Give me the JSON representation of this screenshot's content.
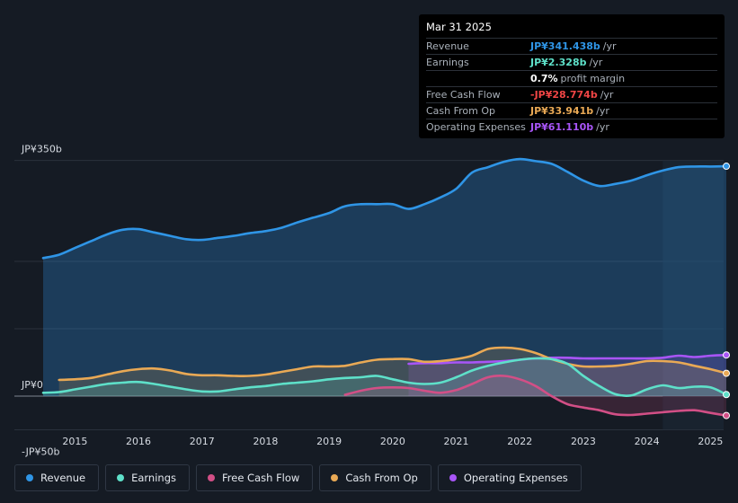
{
  "chart_data": {
    "type": "line",
    "title": "Mar 31 2025",
    "y_ticks": [
      {
        "label": "JP¥350b",
        "value": 350
      },
      {
        "label": "JP¥0",
        "value": 0
      },
      {
        "label": "-JP¥50b",
        "value": -50
      }
    ],
    "ylim": [
      -50,
      350
    ],
    "xlim": [
      2014.5,
      2025.25
    ],
    "x_ticks": [
      "2015",
      "2016",
      "2017",
      "2018",
      "2019",
      "2020",
      "2021",
      "2022",
      "2023",
      "2024",
      "2025"
    ],
    "forecast_start": 2024.25,
    "series": [
      {
        "name": "Revenue",
        "color": "#2f95e6",
        "fill": true,
        "x": [
          2014.5,
          2014.75,
          2015.0,
          2015.25,
          2015.5,
          2015.75,
          2016.0,
          2016.25,
          2016.5,
          2016.75,
          2017.0,
          2017.25,
          2017.5,
          2017.75,
          2018.0,
          2018.25,
          2018.5,
          2018.75,
          2019.0,
          2019.25,
          2019.5,
          2019.75,
          2020.0,
          2020.25,
          2020.5,
          2020.75,
          2021.0,
          2021.25,
          2021.5,
          2021.75,
          2022.0,
          2022.25,
          2022.5,
          2022.75,
          2023.0,
          2023.25,
          2023.5,
          2023.75,
          2024.0,
          2024.25,
          2024.5,
          2024.75,
          2025.0,
          2025.25
        ],
        "values": [
          205,
          210,
          220,
          230,
          240,
          247,
          248,
          243,
          238,
          233,
          232,
          235,
          238,
          242,
          245,
          250,
          258,
          265,
          272,
          282,
          285,
          285,
          285,
          278,
          285,
          295,
          308,
          332,
          340,
          348,
          352,
          349,
          345,
          333,
          320,
          312,
          315,
          320,
          328,
          335,
          340,
          341,
          341,
          341.4
        ]
      },
      {
        "name": "Earnings",
        "color": "#5ee0c9",
        "fill": true,
        "x": [
          2014.5,
          2014.75,
          2015.0,
          2015.25,
          2015.5,
          2015.75,
          2016.0,
          2016.25,
          2016.5,
          2016.75,
          2017.0,
          2017.25,
          2017.5,
          2017.75,
          2018.0,
          2018.25,
          2018.5,
          2018.75,
          2019.0,
          2019.25,
          2019.5,
          2019.75,
          2020.0,
          2020.25,
          2020.5,
          2020.75,
          2021.0,
          2021.25,
          2021.5,
          2021.75,
          2022.0,
          2022.25,
          2022.5,
          2022.75,
          2023.0,
          2023.25,
          2023.5,
          2023.75,
          2024.0,
          2024.25,
          2024.5,
          2024.75,
          2025.0,
          2025.25
        ],
        "values": [
          5,
          6,
          10,
          14,
          18,
          20,
          21,
          18,
          14,
          10,
          7,
          7,
          10,
          13,
          15,
          18,
          20,
          22,
          25,
          27,
          28,
          30,
          25,
          20,
          18,
          20,
          28,
          38,
          45,
          50,
          54,
          56,
          55,
          48,
          30,
          15,
          3,
          1,
          10,
          16,
          12,
          14,
          13,
          2.3
        ]
      },
      {
        "name": "Free Cash Flow",
        "color": "#d24f86",
        "fill": true,
        "x": [
          2019.25,
          2019.5,
          2019.75,
          2020.0,
          2020.25,
          2020.5,
          2020.75,
          2021.0,
          2021.25,
          2021.5,
          2021.75,
          2022.0,
          2022.25,
          2022.5,
          2022.75,
          2023.0,
          2023.25,
          2023.5,
          2023.75,
          2024.0,
          2024.25,
          2024.5,
          2024.75,
          2025.0,
          2025.25
        ],
        "values": [
          2,
          8,
          12,
          13,
          12,
          8,
          5,
          9,
          18,
          28,
          30,
          25,
          15,
          0,
          -12,
          -17,
          -21,
          -27,
          -28,
          -26,
          -24,
          -22,
          -21,
          -25,
          -28.8
        ]
      },
      {
        "name": "Cash From Op",
        "color": "#e9a955",
        "fill": true,
        "x": [
          2014.75,
          2015.0,
          2015.25,
          2015.5,
          2015.75,
          2016.0,
          2016.25,
          2016.5,
          2016.75,
          2017.0,
          2017.25,
          2017.5,
          2017.75,
          2018.0,
          2018.25,
          2018.5,
          2018.75,
          2019.0,
          2019.25,
          2019.5,
          2019.75,
          2020.0,
          2020.25,
          2020.5,
          2020.75,
          2021.0,
          2021.25,
          2021.5,
          2021.75,
          2022.0,
          2022.25,
          2022.5,
          2022.75,
          2023.0,
          2023.25,
          2023.5,
          2023.75,
          2024.0,
          2024.25,
          2024.5,
          2024.75,
          2025.0,
          2025.25
        ],
        "values": [
          24,
          25,
          27,
          32,
          37,
          40,
          41,
          38,
          33,
          31,
          31,
          30,
          30,
          32,
          36,
          40,
          44,
          44,
          45,
          50,
          54,
          55,
          55,
          51,
          52,
          55,
          60,
          70,
          72,
          70,
          64,
          55,
          48,
          44,
          44,
          45,
          48,
          52,
          52,
          50,
          45,
          40,
          33.9
        ]
      },
      {
        "name": "Operating Expenses",
        "color": "#a855f7",
        "fill": true,
        "x": [
          2020.25,
          2020.5,
          2020.75,
          2021.0,
          2021.25,
          2021.5,
          2021.75,
          2022.0,
          2022.25,
          2022.5,
          2022.75,
          2023.0,
          2023.25,
          2023.5,
          2023.75,
          2024.0,
          2024.25,
          2024.5,
          2024.75,
          2025.0,
          2025.25
        ],
        "values": [
          48,
          49,
          49,
          50,
          50,
          51,
          52,
          54,
          56,
          57,
          57,
          56,
          56,
          56,
          56,
          56,
          57,
          60,
          58,
          60,
          61.1
        ]
      }
    ]
  },
  "tooltip": {
    "date": "Mar 31 2025",
    "rows": [
      {
        "label": "Revenue",
        "value": "JP¥341.438b",
        "unit": "/yr",
        "color": "#2f95e6"
      },
      {
        "label": "Earnings",
        "value": "JP¥2.328b",
        "unit": "/yr",
        "color": "#5ee0c9"
      },
      {
        "label": "",
        "value": "0.7%",
        "unit": "profit margin",
        "color": "#ffffff"
      },
      {
        "label": "Free Cash Flow",
        "value": "-JP¥28.774b",
        "unit": "/yr",
        "color": "#f04545"
      },
      {
        "label": "Cash From Op",
        "value": "JP¥33.941b",
        "unit": "/yr",
        "color": "#e9a955"
      },
      {
        "label": "Operating Expenses",
        "value": "JP¥61.110b",
        "unit": "/yr",
        "color": "#a855f7"
      }
    ]
  },
  "legend": [
    {
      "label": "Revenue",
      "color": "#2f95e6"
    },
    {
      "label": "Earnings",
      "color": "#5ee0c9"
    },
    {
      "label": "Free Cash Flow",
      "color": "#d24f86"
    },
    {
      "label": "Cash From Op",
      "color": "#e9a955"
    },
    {
      "label": "Operating Expenses",
      "color": "#a855f7"
    }
  ]
}
